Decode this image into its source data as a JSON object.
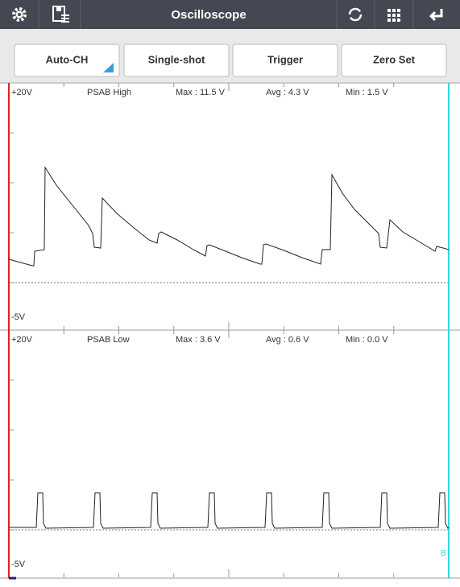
{
  "toolbar": {
    "title": "Oscilloscope"
  },
  "buttons": [
    "Auto-CH",
    "Single-shot",
    "Trigger",
    "Zero Set"
  ],
  "channels": [
    {
      "top_label": "+20V",
      "name": "PSAB High",
      "max": "Max : 11.5 V",
      "avg": "Avg : 4.3 V",
      "min": "Min : 1.5 V",
      "bottom_label": "-5V"
    },
    {
      "top_label": "+20V",
      "name": "PSAB Low",
      "max": "Max : 3.6 V",
      "avg": "Avg : 0.6 V",
      "min": "Min : 0.0 V",
      "bottom_label": "-5V"
    }
  ],
  "cursor_label": "B"
}
